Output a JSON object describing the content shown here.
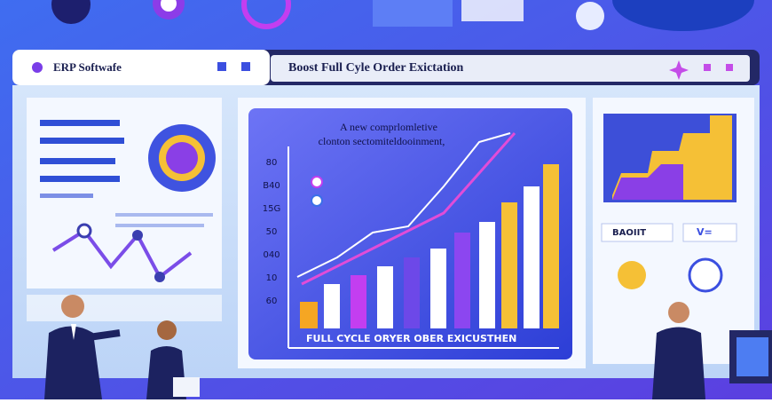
{
  "window": {
    "tab_title": "ERP Softwafe",
    "headline": "Boost Full Cyle Order Exictation"
  },
  "chart_panel": {
    "caption_line1": "A new comprlomletive",
    "caption_line2": "clonton sectomiteldooinment,",
    "axis_labels": [
      "80",
      "B40",
      "15G",
      "50",
      "040",
      "10",
      "60"
    ],
    "footer": "FULL CYCLE ORYER OBER EXICUSTHEN"
  },
  "side_panel": {
    "button": "BAOIIT",
    "toggle": "V="
  }
}
